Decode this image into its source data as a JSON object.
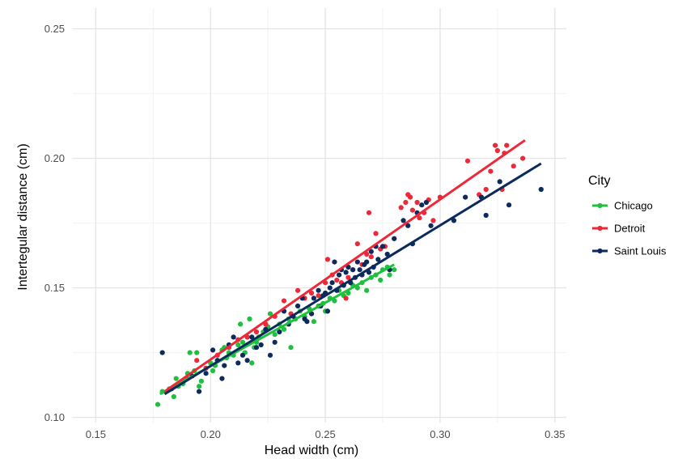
{
  "chart_data": {
    "type": "scatter",
    "title": "",
    "xlabel": "Head width (cm)",
    "ylabel": "Intertegular distance (cm)",
    "xlim": [
      0.14,
      0.355
    ],
    "ylim": [
      0.098,
      0.258
    ],
    "x_ticks": [
      0.15,
      0.2,
      0.25,
      0.3,
      0.35
    ],
    "x_tick_labels": [
      "0.15",
      "0.20",
      "0.25",
      "0.30",
      "0.35"
    ],
    "y_ticks": [
      0.1,
      0.15,
      0.2,
      0.25
    ],
    "y_tick_labels": [
      "0.10",
      "0.15",
      "0.20",
      "0.25"
    ],
    "grid": true,
    "legend": {
      "title": "City",
      "position": "right"
    },
    "series": [
      {
        "name": "Chicago",
        "color": "#1fbf3f",
        "fit": {
          "x": [
            0.178,
            0.28
          ],
          "y": [
            0.109,
            0.159
          ]
        },
        "points": [
          [
            0.177,
            0.105
          ],
          [
            0.179,
            0.11
          ],
          [
            0.182,
            0.111
          ],
          [
            0.184,
            0.108
          ],
          [
            0.185,
            0.115
          ],
          [
            0.186,
            0.112
          ],
          [
            0.188,
            0.113
          ],
          [
            0.19,
            0.117
          ],
          [
            0.191,
            0.125
          ],
          [
            0.193,
            0.118
          ],
          [
            0.194,
            0.125
          ],
          [
            0.195,
            0.112
          ],
          [
            0.196,
            0.114
          ],
          [
            0.198,
            0.119
          ],
          [
            0.2,
            0.121
          ],
          [
            0.201,
            0.118
          ],
          [
            0.202,
            0.12
          ],
          [
            0.203,
            0.122
          ],
          [
            0.205,
            0.126
          ],
          [
            0.206,
            0.127
          ],
          [
            0.207,
            0.123
          ],
          [
            0.208,
            0.125
          ],
          [
            0.21,
            0.124
          ],
          [
            0.212,
            0.128
          ],
          [
            0.213,
            0.136
          ],
          [
            0.214,
            0.129
          ],
          [
            0.215,
            0.125
          ],
          [
            0.216,
            0.131
          ],
          [
            0.217,
            0.138
          ],
          [
            0.218,
            0.121
          ],
          [
            0.219,
            0.127
          ],
          [
            0.22,
            0.129
          ],
          [
            0.221,
            0.131
          ],
          [
            0.223,
            0.133
          ],
          [
            0.225,
            0.135
          ],
          [
            0.226,
            0.14
          ],
          [
            0.228,
            0.132
          ],
          [
            0.23,
            0.136
          ],
          [
            0.232,
            0.134
          ],
          [
            0.234,
            0.138
          ],
          [
            0.235,
            0.127
          ],
          [
            0.237,
            0.138
          ],
          [
            0.239,
            0.141
          ],
          [
            0.241,
            0.139
          ],
          [
            0.243,
            0.142
          ],
          [
            0.245,
            0.137
          ],
          [
            0.247,
            0.143
          ],
          [
            0.249,
            0.144
          ],
          [
            0.25,
            0.141
          ],
          [
            0.252,
            0.146
          ],
          [
            0.254,
            0.145
          ],
          [
            0.256,
            0.149
          ],
          [
            0.258,
            0.147
          ],
          [
            0.26,
            0.148
          ],
          [
            0.262,
            0.151
          ],
          [
            0.264,
            0.15
          ],
          [
            0.266,
            0.152
          ],
          [
            0.268,
            0.149
          ],
          [
            0.27,
            0.154
          ],
          [
            0.272,
            0.155
          ],
          [
            0.274,
            0.153
          ],
          [
            0.275,
            0.157
          ],
          [
            0.277,
            0.158
          ],
          [
            0.278,
            0.155
          ],
          [
            0.28,
            0.157
          ]
        ]
      },
      {
        "name": "Detroit",
        "color": "#ed2939",
        "fit": {
          "x": [
            0.18,
            0.337
          ],
          "y": [
            0.11,
            0.207
          ]
        },
        "points": [
          [
            0.183,
            0.111
          ],
          [
            0.186,
            0.113
          ],
          [
            0.19,
            0.115
          ],
          [
            0.194,
            0.122
          ],
          [
            0.198,
            0.119
          ],
          [
            0.203,
            0.124
          ],
          [
            0.208,
            0.127
          ],
          [
            0.212,
            0.13
          ],
          [
            0.216,
            0.131
          ],
          [
            0.22,
            0.133
          ],
          [
            0.224,
            0.136
          ],
          [
            0.228,
            0.139
          ],
          [
            0.232,
            0.145
          ],
          [
            0.235,
            0.14
          ],
          [
            0.238,
            0.149
          ],
          [
            0.241,
            0.146
          ],
          [
            0.244,
            0.148
          ],
          [
            0.247,
            0.147
          ],
          [
            0.25,
            0.152
          ],
          [
            0.251,
            0.161
          ],
          [
            0.253,
            0.155
          ],
          [
            0.255,
            0.153
          ],
          [
            0.257,
            0.152
          ],
          [
            0.259,
            0.146
          ],
          [
            0.26,
            0.154
          ],
          [
            0.262,
            0.157
          ],
          [
            0.264,
            0.167
          ],
          [
            0.266,
            0.159
          ],
          [
            0.268,
            0.163
          ],
          [
            0.269,
            0.179
          ],
          [
            0.27,
            0.162
          ],
          [
            0.272,
            0.171
          ],
          [
            0.274,
            0.165
          ],
          [
            0.276,
            0.166
          ],
          [
            0.28,
            0.169
          ],
          [
            0.283,
            0.181
          ],
          [
            0.285,
            0.183
          ],
          [
            0.286,
            0.186
          ],
          [
            0.287,
            0.185
          ],
          [
            0.288,
            0.18
          ],
          [
            0.29,
            0.183
          ],
          [
            0.291,
            0.177
          ],
          [
            0.293,
            0.179
          ],
          [
            0.295,
            0.184
          ],
          [
            0.297,
            0.176
          ],
          [
            0.3,
            0.185
          ],
          [
            0.312,
            0.199
          ],
          [
            0.317,
            0.186
          ],
          [
            0.32,
            0.188
          ],
          [
            0.322,
            0.195
          ],
          [
            0.324,
            0.205
          ],
          [
            0.325,
            0.203
          ],
          [
            0.327,
            0.188
          ],
          [
            0.328,
            0.202
          ],
          [
            0.329,
            0.205
          ],
          [
            0.332,
            0.197
          ],
          [
            0.336,
            0.2
          ]
        ]
      },
      {
        "name": "Saint Louis",
        "color": "#0d2a5c",
        "fit": {
          "x": [
            0.18,
            0.344
          ],
          "y": [
            0.109,
            0.198
          ]
        },
        "points": [
          [
            0.179,
            0.125
          ],
          [
            0.188,
            0.114
          ],
          [
            0.192,
            0.116
          ],
          [
            0.195,
            0.11
          ],
          [
            0.198,
            0.117
          ],
          [
            0.201,
            0.126
          ],
          [
            0.203,
            0.122
          ],
          [
            0.205,
            0.115
          ],
          [
            0.206,
            0.12
          ],
          [
            0.208,
            0.128
          ],
          [
            0.21,
            0.131
          ],
          [
            0.212,
            0.121
          ],
          [
            0.214,
            0.124
          ],
          [
            0.216,
            0.122
          ],
          [
            0.218,
            0.131
          ],
          [
            0.22,
            0.127
          ],
          [
            0.222,
            0.128
          ],
          [
            0.224,
            0.134
          ],
          [
            0.226,
            0.124
          ],
          [
            0.228,
            0.129
          ],
          [
            0.23,
            0.133
          ],
          [
            0.232,
            0.141
          ],
          [
            0.234,
            0.136
          ],
          [
            0.236,
            0.139
          ],
          [
            0.238,
            0.143
          ],
          [
            0.24,
            0.146
          ],
          [
            0.241,
            0.138
          ],
          [
            0.242,
            0.137
          ],
          [
            0.244,
            0.14
          ],
          [
            0.245,
            0.146
          ],
          [
            0.247,
            0.149
          ],
          [
            0.248,
            0.143
          ],
          [
            0.249,
            0.147
          ],
          [
            0.25,
            0.148
          ],
          [
            0.251,
            0.141
          ],
          [
            0.252,
            0.15
          ],
          [
            0.253,
            0.152
          ],
          [
            0.254,
            0.16
          ],
          [
            0.255,
            0.149
          ],
          [
            0.256,
            0.155
          ],
          [
            0.257,
            0.157
          ],
          [
            0.258,
            0.151
          ],
          [
            0.259,
            0.156
          ],
          [
            0.26,
            0.158
          ],
          [
            0.261,
            0.152
          ],
          [
            0.262,
            0.157
          ],
          [
            0.263,
            0.154
          ],
          [
            0.264,
            0.16
          ],
          [
            0.265,
            0.157
          ],
          [
            0.266,
            0.155
          ],
          [
            0.267,
            0.159
          ],
          [
            0.268,
            0.16
          ],
          [
            0.269,
            0.156
          ],
          [
            0.27,
            0.164
          ],
          [
            0.271,
            0.158
          ],
          [
            0.272,
            0.166
          ],
          [
            0.273,
            0.161
          ],
          [
            0.275,
            0.166
          ],
          [
            0.277,
            0.163
          ],
          [
            0.278,
            0.157
          ],
          [
            0.28,
            0.169
          ],
          [
            0.284,
            0.176
          ],
          [
            0.286,
            0.174
          ],
          [
            0.288,
            0.167
          ],
          [
            0.29,
            0.179
          ],
          [
            0.292,
            0.182
          ],
          [
            0.294,
            0.183
          ],
          [
            0.296,
            0.174
          ],
          [
            0.306,
            0.176
          ],
          [
            0.311,
            0.185
          ],
          [
            0.318,
            0.185
          ],
          [
            0.32,
            0.178
          ],
          [
            0.326,
            0.191
          ],
          [
            0.33,
            0.182
          ],
          [
            0.344,
            0.188
          ]
        ]
      }
    ]
  }
}
